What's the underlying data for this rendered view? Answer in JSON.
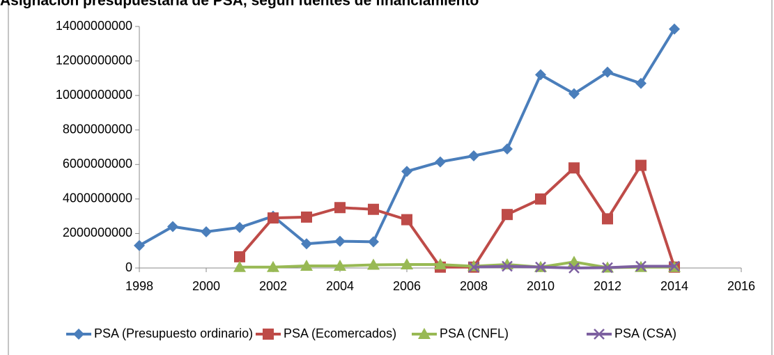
{
  "chart_data": {
    "type": "line",
    "title": "Asignación presupuestaria de PSA, según fuentes de financiamiento",
    "x": [
      1998,
      1999,
      2000,
      2001,
      2002,
      2003,
      2004,
      2005,
      2006,
      2007,
      2008,
      2009,
      2010,
      2011,
      2012,
      2013,
      2014
    ],
    "series": [
      {
        "name": "PSA (Presupuesto ordinario)",
        "color": "#4a7ebb",
        "marker": "diamond",
        "values": [
          1300000000,
          2400000000,
          2100000000,
          2350000000,
          3000000000,
          1400000000,
          1550000000,
          1520000000,
          5600000000,
          6150000000,
          6500000000,
          6900000000,
          11200000000,
          10100000000,
          11350000000,
          10700000000,
          13850000000
        ]
      },
      {
        "name": "PSA (Ecomercados)",
        "color": "#be4b48",
        "marker": "square",
        "values": [
          null,
          null,
          null,
          650000000,
          2900000000,
          2950000000,
          3500000000,
          3400000000,
          2800000000,
          50000000,
          50000000,
          3100000000,
          4000000000,
          5800000000,
          2850000000,
          5950000000,
          50000000
        ]
      },
      {
        "name": "PSA (CNFL)",
        "color": "#98b954",
        "marker": "triangle",
        "values": [
          null,
          null,
          null,
          50000000,
          50000000,
          120000000,
          120000000,
          180000000,
          200000000,
          200000000,
          100000000,
          200000000,
          50000000,
          350000000,
          20000000,
          50000000,
          50000000
        ]
      },
      {
        "name": "PSA (CSA)",
        "color": "#7d60a0",
        "marker": "x",
        "values": [
          null,
          null,
          null,
          null,
          null,
          null,
          null,
          null,
          null,
          null,
          50000000,
          100000000,
          50000000,
          0,
          20000000,
          100000000,
          100000000
        ]
      }
    ],
    "xlim": [
      1998,
      2016
    ],
    "xticks": [
      1998,
      2000,
      2002,
      2004,
      2006,
      2008,
      2010,
      2012,
      2014,
      2016
    ],
    "ylim": [
      0,
      14000000000
    ],
    "yticks": [
      0,
      2000000000,
      4000000000,
      6000000000,
      8000000000,
      10000000000,
      12000000000,
      14000000000
    ],
    "legend": "bottom"
  }
}
